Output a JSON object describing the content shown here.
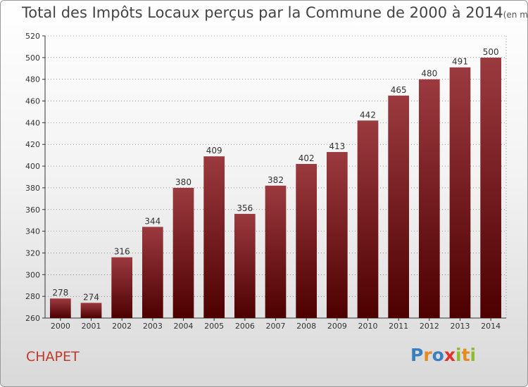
{
  "title": "Total des Impôts Locaux perçus par la Commune de 2000 à 2014",
  "title_unit": "(en milliers d'€)",
  "commune": "CHAPET",
  "logo": {
    "text": "Proxiti",
    "letters": [
      {
        "ch": "P",
        "color": "#3a7fc1"
      },
      {
        "ch": "r",
        "color": "#e58a1f"
      },
      {
        "ch": "o",
        "color": "#3a7fc1"
      },
      {
        "ch": "x",
        "color": "#e0322b"
      },
      {
        "ch": "i",
        "color": "#8bbd2f"
      },
      {
        "ch": "t",
        "color": "#e58a1f"
      },
      {
        "ch": "i",
        "color": "#8bbd2f"
      }
    ]
  },
  "colors": {
    "bar_top": "#9b3a3f",
    "bar_bottom": "#4d0000",
    "grid": "#555555",
    "commune": "#c0392b"
  },
  "chart_data": {
    "type": "bar",
    "title": "Total des Impôts Locaux perçus par la Commune de 2000 à 2014",
    "xlabel": "",
    "ylabel": "",
    "categories": [
      "2000",
      "2001",
      "2002",
      "2003",
      "2004",
      "2005",
      "2006",
      "2007",
      "2008",
      "2009",
      "2010",
      "2011",
      "2012",
      "2013",
      "2014"
    ],
    "values": [
      278,
      274,
      316,
      344,
      380,
      409,
      356,
      382,
      402,
      413,
      442,
      465,
      480,
      491,
      500
    ],
    "ylim": [
      260,
      520
    ],
    "yticks": [
      260,
      280,
      300,
      320,
      340,
      360,
      380,
      400,
      420,
      440,
      460,
      480,
      500,
      520
    ],
    "grid": true
  }
}
